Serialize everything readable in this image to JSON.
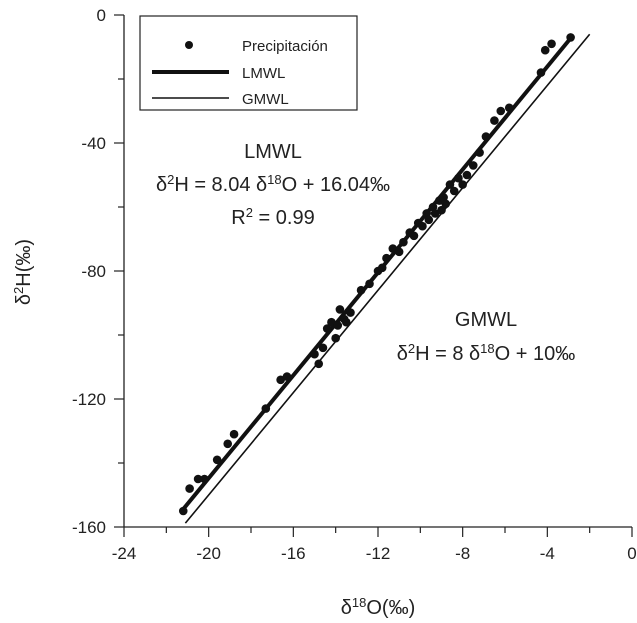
{
  "chart_data": {
    "type": "scatter",
    "title": "",
    "xlabel": "δ18O(‰)",
    "ylabel": "δ2H(‰)",
    "xlim": [
      -24,
      0
    ],
    "ylim": [
      -160,
      0
    ],
    "x_ticks": [
      -24,
      -20,
      -16,
      -12,
      -8,
      -4,
      0
    ],
    "y_ticks": [
      0,
      -40,
      -80,
      -120,
      -160
    ],
    "x_tick_labels": [
      "-24",
      "-20",
      "-16",
      "-12",
      "-8",
      "-4",
      "0"
    ],
    "y_tick_labels": [
      "0",
      "-40",
      "-80",
      "-120",
      "-160"
    ],
    "grid": false,
    "legend": {
      "position": "top-left",
      "entries": [
        {
          "label": "Precipitación",
          "kind": "marker"
        },
        {
          "label": "LMWL",
          "kind": "thick-line"
        },
        {
          "label": "GMWL",
          "kind": "thin-line"
        }
      ]
    },
    "series": [
      {
        "name": "Precipitación",
        "kind": "scatter",
        "color": "#111111",
        "points": [
          [
            -21.2,
            -155
          ],
          [
            -20.9,
            -148
          ],
          [
            -20.5,
            -145
          ],
          [
            -20.2,
            -145
          ],
          [
            -19.6,
            -139
          ],
          [
            -19.1,
            -134
          ],
          [
            -18.8,
            -131
          ],
          [
            -17.3,
            -123
          ],
          [
            -16.6,
            -114
          ],
          [
            -16.3,
            -113
          ],
          [
            -15.0,
            -106
          ],
          [
            -14.8,
            -109
          ],
          [
            -14.6,
            -104
          ],
          [
            -14.4,
            -98
          ],
          [
            -14.2,
            -96
          ],
          [
            -14.0,
            -101
          ],
          [
            -13.9,
            -97
          ],
          [
            -13.8,
            -92
          ],
          [
            -13.6,
            -95
          ],
          [
            -13.5,
            -96
          ],
          [
            -13.3,
            -93
          ],
          [
            -12.8,
            -86
          ],
          [
            -12.4,
            -84
          ],
          [
            -12.0,
            -80
          ],
          [
            -11.8,
            -79
          ],
          [
            -11.6,
            -76
          ],
          [
            -11.3,
            -73
          ],
          [
            -11.0,
            -74
          ],
          [
            -10.8,
            -71
          ],
          [
            -10.5,
            -68
          ],
          [
            -10.3,
            -69
          ],
          [
            -10.1,
            -65
          ],
          [
            -9.9,
            -66
          ],
          [
            -9.7,
            -62
          ],
          [
            -9.6,
            -64
          ],
          [
            -9.4,
            -60
          ],
          [
            -9.3,
            -62
          ],
          [
            -9.1,
            -58
          ],
          [
            -9.0,
            -61
          ],
          [
            -8.9,
            -57
          ],
          [
            -8.8,
            -59
          ],
          [
            -8.6,
            -53
          ],
          [
            -8.4,
            -55
          ],
          [
            -8.2,
            -51
          ],
          [
            -8.0,
            -53
          ],
          [
            -7.8,
            -50
          ],
          [
            -7.5,
            -47
          ],
          [
            -7.2,
            -43
          ],
          [
            -6.9,
            -38
          ],
          [
            -6.5,
            -33
          ],
          [
            -6.2,
            -30
          ],
          [
            -5.8,
            -29
          ],
          [
            -4.3,
            -18
          ],
          [
            -4.1,
            -11
          ],
          [
            -3.8,
            -9
          ],
          [
            -2.9,
            -7
          ]
        ]
      },
      {
        "name": "LMWL",
        "kind": "line",
        "slope": 8.04,
        "intercept": 16.04,
        "x_range": [
          -21.3,
          -2.9
        ],
        "color": "#111111"
      },
      {
        "name": "GMWL",
        "kind": "line",
        "slope": 8,
        "intercept": 10,
        "x_range": [
          -21.1,
          -2.0
        ],
        "color": "#111111"
      }
    ],
    "annotations": [
      {
        "id": "lmwl-title",
        "text": "LMWL"
      },
      {
        "id": "lmwl-eq",
        "prefix": "δ",
        "sup1": "2",
        "mid": "H = 8.04 δ",
        "sup2": "18",
        "suffix": "O + 16.04‰"
      },
      {
        "id": "lmwl-r2",
        "prefix": "R",
        "sup": "2",
        "suffix": " = 0.99"
      },
      {
        "id": "gmwl-title",
        "text": "GMWL"
      },
      {
        "id": "gmwl-eq",
        "prefix": "δ",
        "sup1": "2",
        "mid": "H = 8 δ",
        "sup2": "18",
        "suffix": "O + 10‰"
      }
    ],
    "axis_title_parts": {
      "x": {
        "prefix": "δ",
        "sup": "18",
        "suffix": "O(‰)"
      },
      "y": {
        "prefix": "δ",
        "sup": "2",
        "suffix": "H(‰)"
      }
    }
  }
}
